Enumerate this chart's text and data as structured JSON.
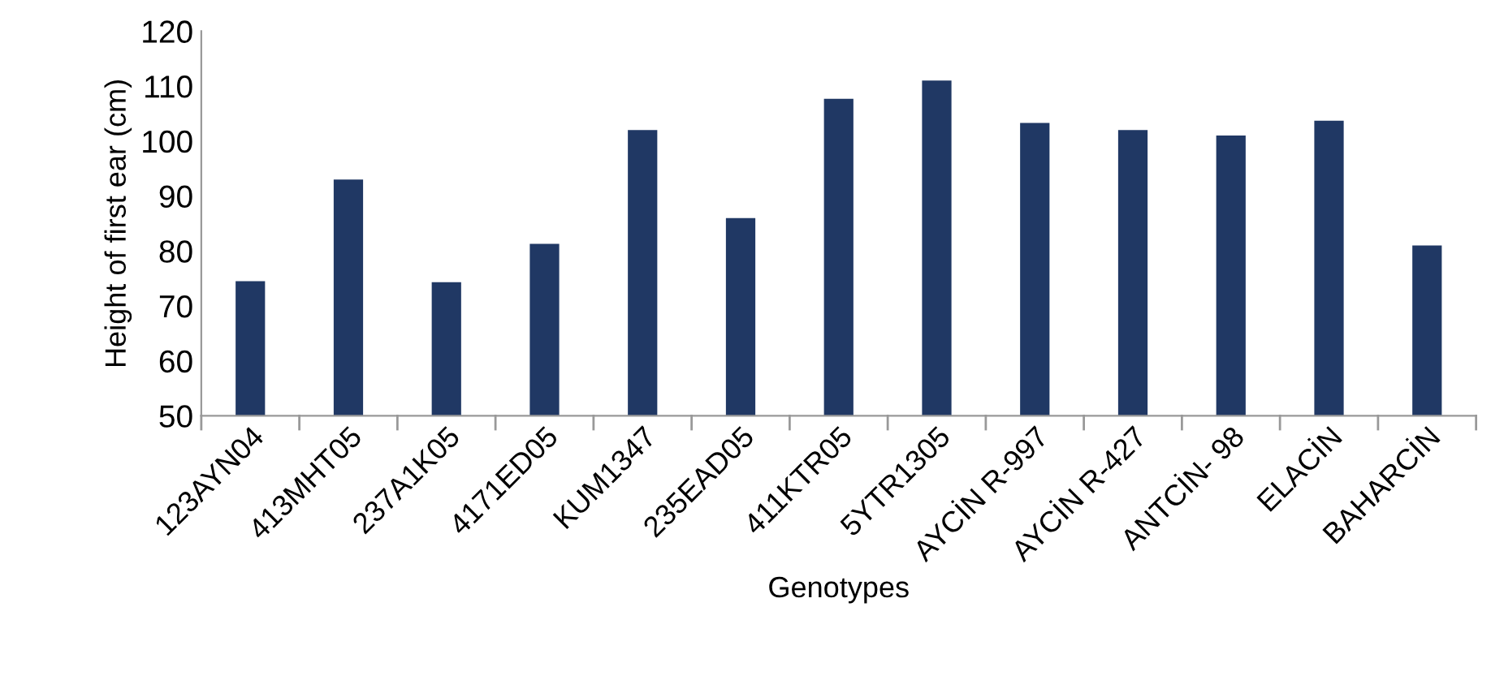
{
  "chart_data": {
    "type": "bar",
    "xlabel": "Genotypes",
    "ylabel": "Height of first ear (cm)",
    "categories": [
      "123AYN04",
      "413MHT05",
      "237A1K05",
      "4171ED05",
      "KUM1347",
      "235EAD05",
      "411KTR05",
      "5YTR1305",
      "AYCİN R-997",
      "AYCİN R-427",
      "ANTCİN- 98",
      "ELACİN",
      "BAHARCİN"
    ],
    "values": [
      74.5,
      93,
      74.3,
      81.3,
      102,
      86,
      107.7,
      111,
      103.3,
      102,
      101,
      103.7,
      81
    ],
    "color": "#203864",
    "ylim": [
      50,
      120
    ],
    "yticks": [
      50,
      60,
      70,
      80,
      90,
      100,
      110,
      120
    ],
    "grid": false,
    "legend": false
  }
}
